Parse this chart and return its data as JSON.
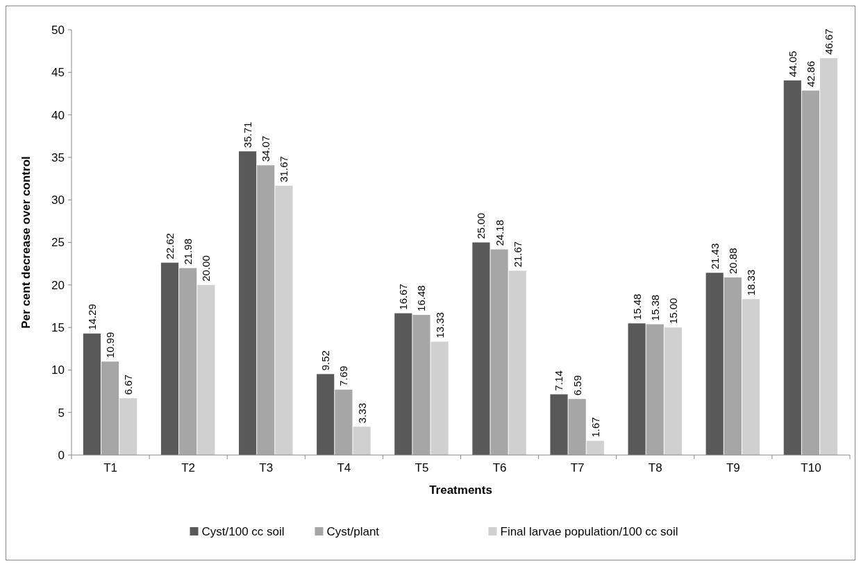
{
  "chart_data": {
    "type": "bar",
    "xlabel": "Treatments",
    "ylabel": "Per cent decrease over control",
    "categories": [
      "T1",
      "T2",
      "T3",
      "T4",
      "T5",
      "T6",
      "T7",
      "T8",
      "T9",
      "T10"
    ],
    "series": [
      {
        "name": "Cyst/100 cc soil",
        "color": "#595959",
        "values": [
          14.29,
          22.62,
          35.71,
          9.52,
          16.67,
          25.0,
          7.14,
          15.48,
          21.43,
          44.05
        ]
      },
      {
        "name": "Cyst/plant",
        "color": "#a6a6a6",
        "values": [
          10.99,
          21.98,
          34.07,
          7.69,
          16.48,
          24.18,
          6.59,
          15.38,
          20.88,
          42.86
        ]
      },
      {
        "name": "Final larvae population/100 cc soil",
        "color": "#d0d0d0",
        "values": [
          6.67,
          20.0,
          31.67,
          3.33,
          13.33,
          21.67,
          1.67,
          15.0,
          18.33,
          46.67
        ]
      }
    ],
    "value_labels": [
      [
        "14.29",
        "22.62",
        "35.71",
        "9.52",
        "16.67",
        "25.00",
        "7.14",
        "15.48",
        "21.43",
        "44.05"
      ],
      [
        "10.99",
        "21.98",
        "34.07",
        "7.69",
        "16.48",
        "24.18",
        "6.59",
        "15.38",
        "20.88",
        "42.86"
      ],
      [
        "6.67",
        "20.00",
        "31.67",
        "3.33",
        "13.33",
        "21.67",
        "1.67",
        "15.00",
        "18.33",
        "46.67"
      ]
    ],
    "ylim": [
      0,
      50
    ],
    "yticks": [
      0,
      5,
      10,
      15,
      20,
      25,
      30,
      35,
      40,
      45,
      50
    ],
    "grid": false,
    "legend": "bottom"
  }
}
